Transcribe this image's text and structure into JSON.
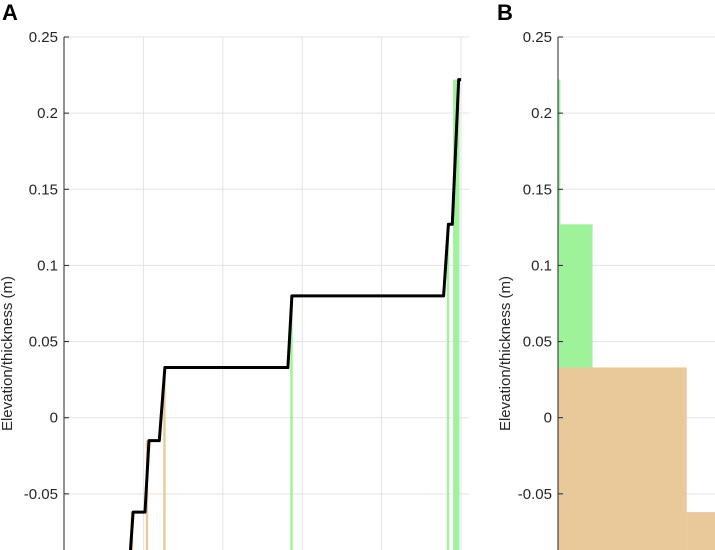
{
  "chart_data": [
    {
      "panel_label": "A",
      "type": "line",
      "ylabel": "Elevation/thickness (m)",
      "ylim": [
        -0.1,
        0.25
      ],
      "yticks": [
        -0.05,
        0,
        0.05,
        0.1,
        0.15,
        0.2,
        0.25
      ],
      "ytick_labels": [
        "-0.05",
        "0",
        "0.05",
        "0.1",
        "0.15",
        "0.2",
        "0.25"
      ],
      "xlim": [
        0,
        5.1
      ],
      "x_gridlines": [
        1,
        2,
        3,
        4,
        5
      ],
      "grid": true,
      "series": [
        {
          "color": "#000000",
          "points": [
            [
              0.82,
              -0.1
            ],
            [
              0.87,
              -0.062
            ],
            [
              1.02,
              -0.062
            ],
            [
              1.07,
              -0.015
            ],
            [
              1.2,
              -0.015
            ],
            [
              1.27,
              0.033
            ],
            [
              2.82,
              0.033
            ],
            [
              2.87,
              0.08
            ],
            [
              4.78,
              0.08
            ],
            [
              4.84,
              0.127
            ],
            [
              4.89,
              0.127
            ],
            [
              4.97,
              0.222
            ],
            [
              5.0,
              0.222
            ]
          ]
        }
      ],
      "bars": [
        {
          "color": "#e9c89a",
          "x0": 0.84,
          "x1": 0.87,
          "y0": -0.1,
          "y1": -0.062
        },
        {
          "color": "#e9c89a",
          "x0": 1.03,
          "x1": 1.06,
          "y0": -0.1,
          "y1": -0.015
        },
        {
          "color": "#e9c89a",
          "x0": 1.25,
          "x1": 1.28,
          "y0": -0.1,
          "y1": 0.033
        },
        {
          "color": "#9df29a",
          "x0": 2.85,
          "x1": 2.88,
          "y0": -0.1,
          "y1": 0.08
        },
        {
          "color": "#9df29a",
          "x0": 4.82,
          "x1": 4.85,
          "y0": -0.1,
          "y1": 0.127
        },
        {
          "color": "#9df29a",
          "x0": 4.9,
          "x1": 4.98,
          "y0": -0.1,
          "y1": 0.222
        }
      ]
    },
    {
      "panel_label": "B",
      "type": "bar",
      "ylabel": "Elevation/thickness (m)",
      "ylim": [
        -0.1,
        0.25
      ],
      "yticks": [
        -0.05,
        0,
        0.05,
        0.1,
        0.15,
        0.2,
        0.25
      ],
      "ytick_labels": [
        "-0.05",
        "0",
        "0.05",
        "0.1",
        "0.15",
        "0.2",
        "0.25"
      ],
      "xlim": [
        0,
        1
      ],
      "grid": true,
      "bars": [
        {
          "color": "#e9c89a",
          "x0": 0.0,
          "x1": 0.82,
          "y0": -0.1,
          "y1": 0.033
        },
        {
          "color": "#e9c89a",
          "x0": 0.82,
          "x1": 1.0,
          "y0": -0.1,
          "y1": -0.062
        },
        {
          "color": "#9df29a",
          "x0": 0.0,
          "x1": 0.22,
          "y0": 0.033,
          "y1": 0.127
        },
        {
          "color": "#9df29a",
          "x0": 0.0,
          "x1": 0.015,
          "y0": 0.127,
          "y1": 0.222
        }
      ]
    }
  ]
}
